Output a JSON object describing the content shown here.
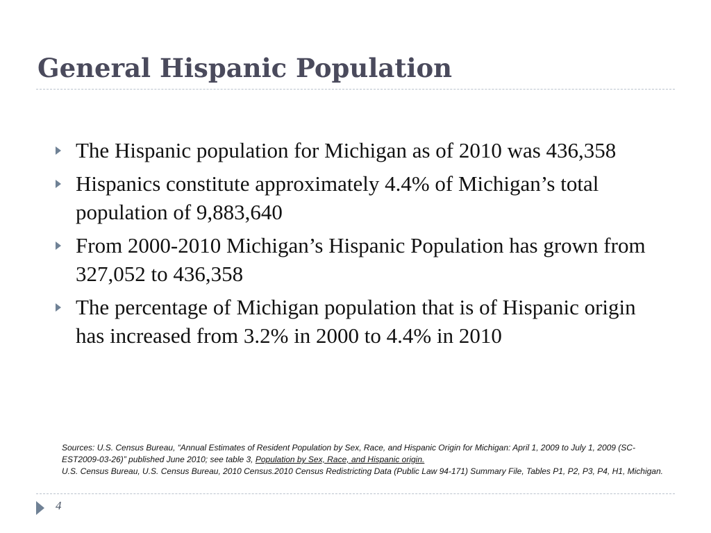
{
  "slide": {
    "title": "General Hispanic Population",
    "bullets": [
      "The Hispanic population for Michigan as of 2010 was 436,358",
      "Hispanics constitute approximately 4.4% of Michigan’s total population of 9,883,640",
      "From 2000-2010 Michigan’s Hispanic Population has grown from 327,052 to 436,358",
      "The percentage of Michigan population that is of Hispanic origin has increased from 3.2% in 2000 to 4.4% in 2010"
    ],
    "sources": {
      "line1_prefix": "Sources: U.S. Census Bureau, “Annual Estimates of Resident Population by Sex, Race, and Hispanic Origin for Michigan: April 1, 2009 to July 1, 2009 (SC-EST2009-03-26)” published June 2010; see table 3, ",
      "line1_link": "Population by Sex, Race, and Hispanic origin.",
      "line2": "U.S. Census Bureau, U.S. Census Bureau, 2010 Census.2010 Census Redistricting Data (Public Law 94-171) Summary File, Tables P1, P2, P3, P4, H1, Michigan."
    },
    "page_number": "4",
    "colors": {
      "title": "#4a4a5c",
      "bullet_marker": "#6f8195",
      "divider": "#b9c2cc"
    },
    "icons": {
      "bullet": "triangle-right-icon",
      "nav": "triangle-right-icon"
    }
  }
}
